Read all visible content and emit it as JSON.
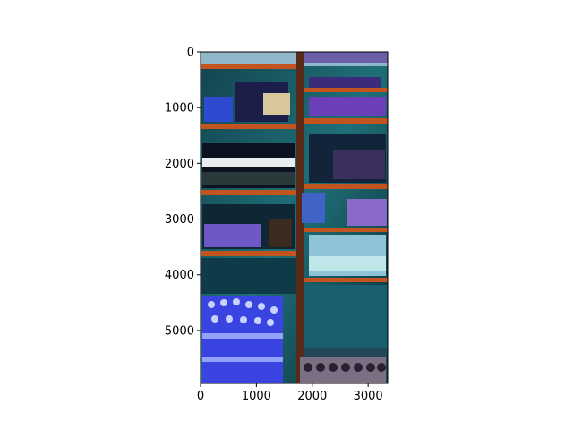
{
  "image": {
    "description_icon": "photo-of-store-shelves",
    "x_extent": [
      0,
      3350
    ],
    "y_extent": [
      0,
      5950
    ],
    "y_inverted": true
  },
  "axes": {
    "x_ticks": [
      {
        "value": 0,
        "label": "0"
      },
      {
        "value": 1000,
        "label": "1000"
      },
      {
        "value": 2000,
        "label": "2000"
      },
      {
        "value": 3000,
        "label": "3000"
      }
    ],
    "y_ticks": [
      {
        "value": 0,
        "label": "0"
      },
      {
        "value": 1000,
        "label": "1000"
      },
      {
        "value": 2000,
        "label": "2000"
      },
      {
        "value": 3000,
        "label": "3000"
      },
      {
        "value": 4000,
        "label": "4000"
      },
      {
        "value": 5000,
        "label": "5000"
      }
    ]
  },
  "colors": {
    "shelf_orange": "#c2551f",
    "bottle_blue": "#3a44e0",
    "dark_frame": "#0d1a2a",
    "teal_bg": "#1f6f78"
  }
}
